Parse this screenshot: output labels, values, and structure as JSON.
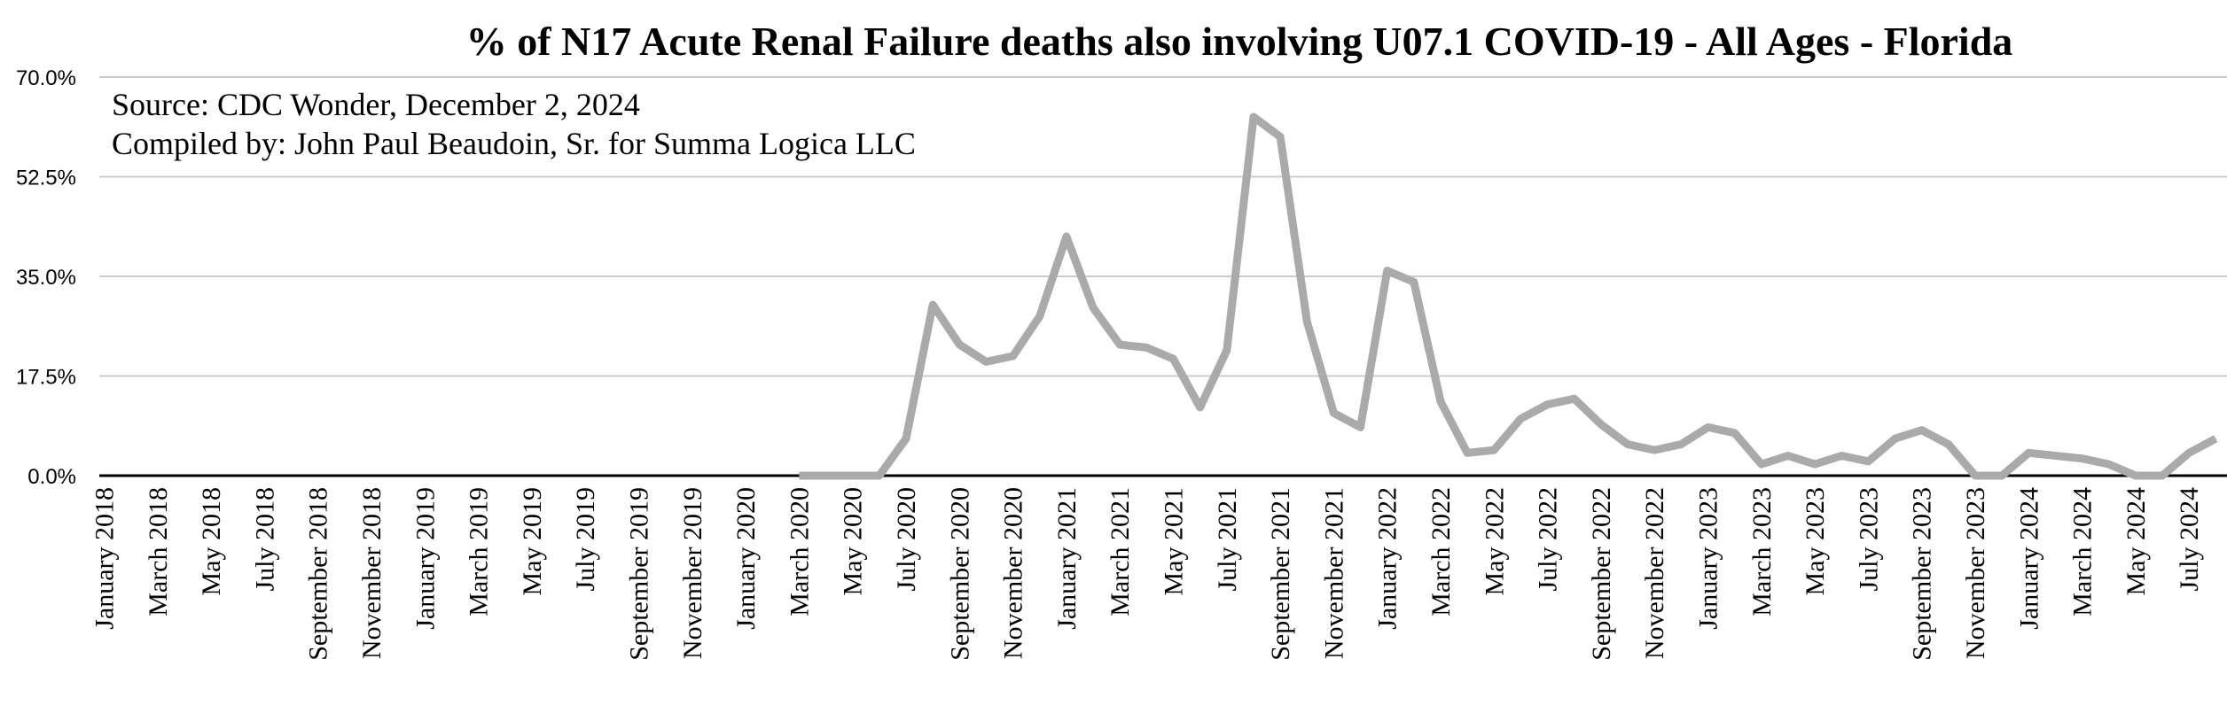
{
  "chart_data": {
    "type": "line",
    "title": "% of N17 Acute Renal Failure deaths also involving U07.1 COVID-19 - All Ages - Florida",
    "annotations": [
      "Source:  CDC Wonder, December 2, 2024",
      "Compiled by:  John Paul Beaudoin, Sr. for Summa Logica LLC"
    ],
    "xlabel": "",
    "ylabel": "",
    "ylim": [
      0,
      70
    ],
    "yticks": [
      "0.0%",
      "17.5%",
      "35.0%",
      "52.5%",
      "70.0%"
    ],
    "ytick_values": [
      0,
      17.5,
      35,
      52.5,
      70
    ],
    "grid": true,
    "legend": "none",
    "categories": [
      "January 2018",
      "February 2018",
      "March 2018",
      "April 2018",
      "May 2018",
      "June 2018",
      "July 2018",
      "August 2018",
      "September 2018",
      "October 2018",
      "November 2018",
      "December 2018",
      "January 2019",
      "February 2019",
      "March 2019",
      "April 2019",
      "May 2019",
      "June 2019",
      "July 2019",
      "August 2019",
      "September 2019",
      "October 2019",
      "November 2019",
      "December 2019",
      "January 2020",
      "February 2020",
      "March 2020",
      "April 2020",
      "May 2020",
      "June 2020",
      "July 2020",
      "August 2020",
      "September 2020",
      "October 2020",
      "November 2020",
      "December 2020",
      "January 2021",
      "February 2021",
      "March 2021",
      "April 2021",
      "May 2021",
      "June 2021",
      "July 2021",
      "August 2021",
      "September 2021",
      "October 2021",
      "November 2021",
      "December 2021",
      "January 2022",
      "February 2022",
      "March 2022",
      "April 2022",
      "May 2022",
      "June 2022",
      "July 2022",
      "August 2022",
      "September 2022",
      "October 2022",
      "November 2022",
      "December 2022",
      "January 2023",
      "February 2023",
      "March 2023",
      "April 2023",
      "May 2023",
      "June 2023",
      "July 2023",
      "August 2023",
      "September 2023",
      "October 2023",
      "November 2023",
      "December 2023",
      "January 2024",
      "February 2024",
      "March 2024",
      "April 2024",
      "May 2024",
      "June 2024",
      "July 2024",
      "August 2024"
    ],
    "series": [
      {
        "color": "#aaaaaa",
        "values": [
          null,
          null,
          null,
          null,
          null,
          null,
          null,
          null,
          null,
          null,
          null,
          null,
          null,
          null,
          null,
          null,
          null,
          null,
          null,
          null,
          null,
          null,
          null,
          null,
          null,
          null,
          0,
          0,
          0,
          0,
          6.5,
          30,
          23,
          20,
          21,
          28,
          42,
          29.5,
          23,
          22.5,
          20.5,
          12,
          22,
          63,
          59.5,
          27,
          11,
          8.5,
          36,
          34,
          13,
          4,
          4.5,
          10,
          12.5,
          13.5,
          9,
          5.5,
          4.5,
          5.5,
          8.5,
          7.5,
          2,
          3.5,
          2,
          3.5,
          2.5,
          6.5,
          8,
          5.5,
          0,
          0,
          4,
          3.5,
          3,
          2,
          0,
          0,
          4,
          6.5
        ]
      }
    ]
  }
}
